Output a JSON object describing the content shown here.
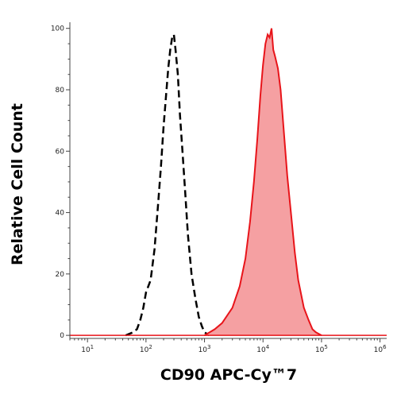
{
  "chart_data": {
    "type": "area",
    "xlabel": "CD90 APC-Cy™7",
    "ylabel": "Relative Cell Count",
    "x_scale": "log",
    "xlim": [
      5,
      1300000
    ],
    "ylim": [
      -1,
      102
    ],
    "x_ticks": [
      {
        "value": 10,
        "base": "10",
        "exp": "1"
      },
      {
        "value": 100,
        "base": "10",
        "exp": "2"
      },
      {
        "value": 1000,
        "base": "10",
        "exp": "3"
      },
      {
        "value": 10000,
        "base": "10",
        "exp": "4"
      },
      {
        "value": 100000,
        "base": "10",
        "exp": "5"
      },
      {
        "value": 1000000,
        "base": "10",
        "exp": "6"
      }
    ],
    "y_ticks": [
      {
        "value": 0,
        "label": "0"
      },
      {
        "value": 20,
        "label": "20"
      },
      {
        "value": 40,
        "label": "40"
      },
      {
        "value": 60,
        "label": "60"
      },
      {
        "value": 80,
        "label": "80"
      },
      {
        "value": 100,
        "label": "100"
      }
    ],
    "grid": false,
    "legend": "none",
    "series": [
      {
        "style": "dashed-outline",
        "color": "#000000",
        "points": [
          [
            45,
            0
          ],
          [
            60,
            1
          ],
          [
            70,
            2
          ],
          [
            80,
            5
          ],
          [
            90,
            9
          ],
          [
            100,
            14
          ],
          [
            120,
            18
          ],
          [
            140,
            28
          ],
          [
            160,
            42
          ],
          [
            180,
            55
          ],
          [
            200,
            68
          ],
          [
            220,
            78
          ],
          [
            240,
            87
          ],
          [
            260,
            93
          ],
          [
            280,
            97
          ],
          [
            300,
            98
          ],
          [
            320,
            93
          ],
          [
            350,
            85
          ],
          [
            380,
            72
          ],
          [
            420,
            60
          ],
          [
            470,
            46
          ],
          [
            520,
            33
          ],
          [
            600,
            20
          ],
          [
            700,
            12
          ],
          [
            800,
            6
          ],
          [
            900,
            3
          ],
          [
            1000,
            1
          ],
          [
            1200,
            0
          ]
        ]
      },
      {
        "style": "filled",
        "color": "#e8141a",
        "fill": "#f5a0a2",
        "points": [
          [
            1000,
            0
          ],
          [
            1500,
            2
          ],
          [
            2000,
            4
          ],
          [
            3000,
            9
          ],
          [
            4000,
            16
          ],
          [
            5000,
            25
          ],
          [
            6000,
            37
          ],
          [
            7000,
            50
          ],
          [
            8000,
            64
          ],
          [
            9000,
            78
          ],
          [
            10000,
            88
          ],
          [
            11000,
            95
          ],
          [
            12000,
            98
          ],
          [
            13000,
            97
          ],
          [
            14000,
            100
          ],
          [
            15000,
            93
          ],
          [
            16000,
            91
          ],
          [
            18000,
            87
          ],
          [
            20000,
            80
          ],
          [
            23000,
            65
          ],
          [
            26000,
            52
          ],
          [
            30000,
            40
          ],
          [
            35000,
            27
          ],
          [
            40000,
            18
          ],
          [
            50000,
            9
          ],
          [
            60000,
            5
          ],
          [
            70000,
            2
          ],
          [
            80000,
            1
          ],
          [
            100000,
            0
          ]
        ]
      }
    ]
  }
}
